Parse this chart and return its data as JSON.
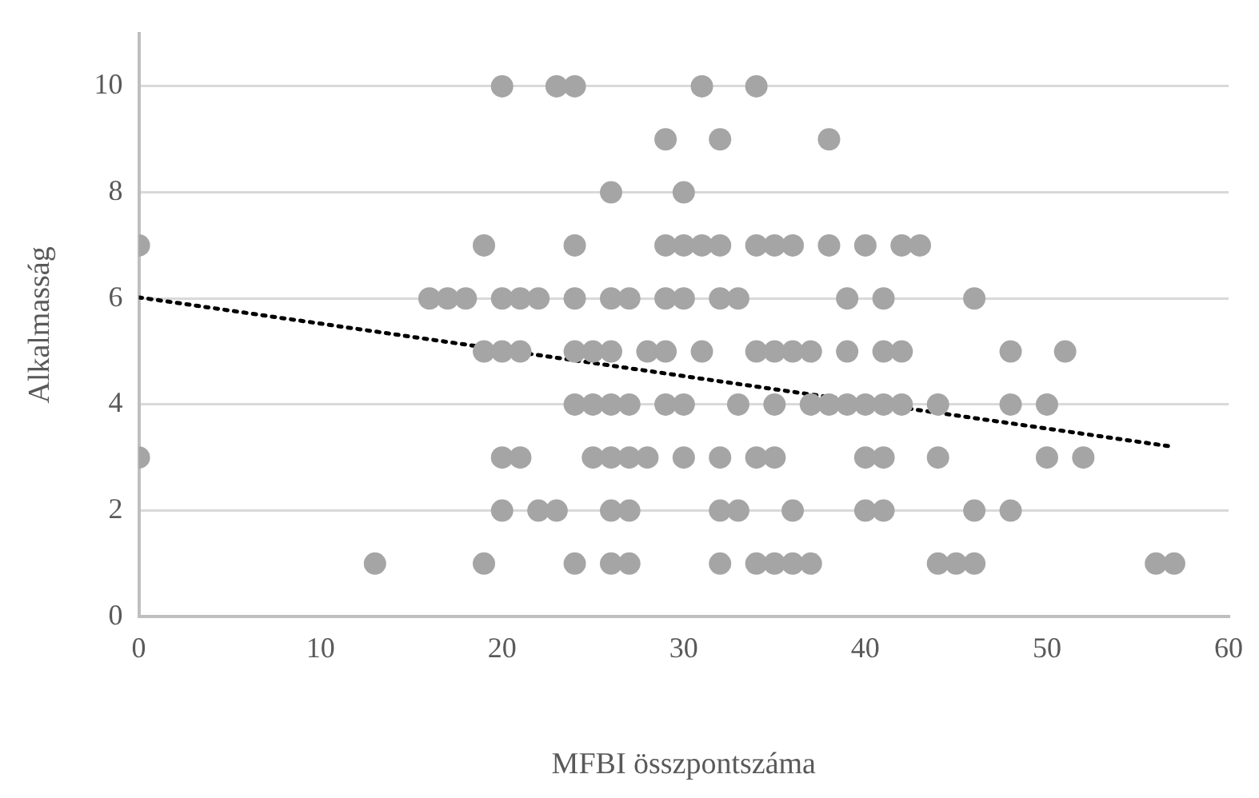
{
  "chart_data": {
    "type": "scatter",
    "xlabel": "MFBI összpontszáma",
    "ylabel": "Alkalmasság",
    "xlim": [
      0,
      60
    ],
    "xticks": [
      0,
      10,
      20,
      30,
      40,
      50,
      60
    ],
    "ylim": [
      0,
      11
    ],
    "yticks": [
      0,
      2,
      4,
      6,
      8,
      10
    ],
    "grid": "y",
    "legend": false,
    "marker": "circle",
    "series": [
      {
        "color": "#a5a5a5",
        "x": [
          20,
          23,
          24,
          31,
          34,
          29,
          32,
          38,
          26,
          30,
          0,
          19,
          24,
          29,
          30,
          31,
          32,
          34,
          35,
          36,
          38,
          40,
          42,
          43,
          16,
          17,
          18,
          20,
          21,
          22,
          24,
          26,
          27,
          29,
          30,
          32,
          33,
          39,
          41,
          46,
          19,
          20,
          21,
          24,
          25,
          26,
          28,
          29,
          31,
          34,
          35,
          36,
          37,
          39,
          41,
          42,
          48,
          51,
          24,
          25,
          26,
          27,
          29,
          30,
          33,
          35,
          37,
          38,
          39,
          40,
          41,
          42,
          44,
          48,
          50,
          0,
          20,
          21,
          25,
          26,
          27,
          28,
          30,
          32,
          34,
          35,
          40,
          41,
          44,
          50,
          52,
          20,
          22,
          23,
          26,
          27,
          32,
          33,
          36,
          40,
          41,
          46,
          48,
          13,
          19,
          24,
          26,
          27,
          32,
          34,
          35,
          36,
          37,
          44,
          45,
          46,
          56,
          57
        ],
        "values": [
          10,
          10,
          10,
          10,
          10,
          9,
          9,
          9,
          8,
          8,
          7,
          7,
          7,
          7,
          7,
          7,
          7,
          7,
          7,
          7,
          7,
          7,
          7,
          7,
          6,
          6,
          6,
          6,
          6,
          6,
          6,
          6,
          6,
          6,
          6,
          6,
          6,
          6,
          6,
          6,
          5,
          5,
          5,
          5,
          5,
          5,
          5,
          5,
          5,
          5,
          5,
          5,
          5,
          5,
          5,
          5,
          5,
          5,
          4,
          4,
          4,
          4,
          4,
          4,
          4,
          4,
          4,
          4,
          4,
          4,
          4,
          4,
          4,
          4,
          4,
          3,
          3,
          3,
          3,
          3,
          3,
          3,
          3,
          3,
          3,
          3,
          3,
          3,
          3,
          3,
          3,
          2,
          2,
          2,
          2,
          2,
          2,
          2,
          2,
          2,
          2,
          2,
          2,
          1,
          1,
          1,
          1,
          1,
          1,
          1,
          1,
          1,
          1,
          1,
          1,
          1,
          1,
          1
        ]
      },
      {
        "type": "line",
        "color": "#000000",
        "line_style": "dotted",
        "marker": "none",
        "x": [
          0,
          57
        ],
        "values": [
          6.02,
          3.2
        ]
      }
    ]
  }
}
